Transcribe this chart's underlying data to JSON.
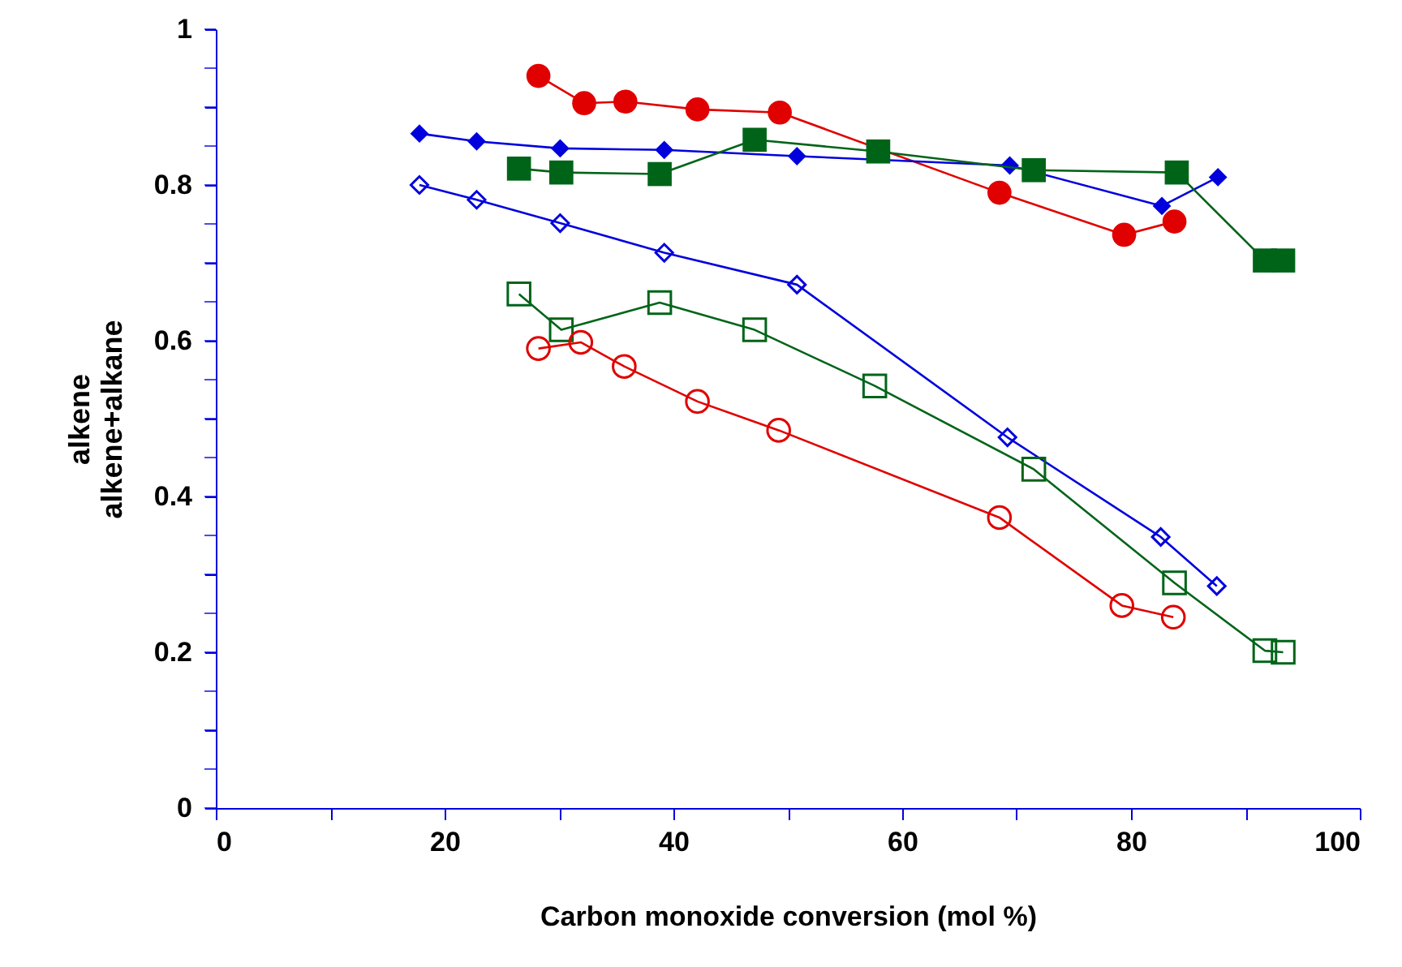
{
  "chart_data": {
    "type": "line",
    "xlabel": "Carbon monoxide conversion (mol %)",
    "ylabel": "alkene\nalkene+alkane",
    "xlim": [
      0,
      100
    ],
    "ylim": [
      0,
      1
    ],
    "xticks": [
      0,
      {
        "value": 10,
        "label": null
      },
      20,
      {
        "value": 30,
        "label": null
      },
      40,
      {
        "value": 50,
        "label": null
      },
      60,
      {
        "value": 70,
        "label": null
      },
      80,
      {
        "value": 90,
        "label": null
      },
      100
    ],
    "yticks": [
      0,
      {
        "value": 0.05,
        "label": null
      },
      {
        "value": 0.1,
        "label": null
      },
      {
        "value": 0.15,
        "label": null
      },
      0.2,
      {
        "value": 0.25,
        "label": null
      },
      {
        "value": 0.3,
        "label": null
      },
      {
        "value": 0.35,
        "label": null
      },
      0.4,
      {
        "value": 0.45,
        "label": null
      },
      {
        "value": 0.5,
        "label": null
      },
      {
        "value": 0.55,
        "label": null
      },
      0.6,
      {
        "value": 0.65,
        "label": null
      },
      {
        "value": 0.7,
        "label": null
      },
      {
        "value": 0.75,
        "label": null
      },
      0.8,
      {
        "value": 0.85,
        "label": null
      },
      {
        "value": 0.9,
        "label": null
      },
      {
        "value": 0.95,
        "label": null
      },
      1
    ],
    "grid": false,
    "series": [
      {
        "color": "#e00000",
        "marker": "circle",
        "x": [
          28.2,
          32.2,
          35.8,
          42.1,
          49.3,
          68.5,
          79.4,
          83.8
        ],
        "values": [
          0.94,
          0.905,
          0.907,
          0.897,
          0.893,
          0.79,
          0.736,
          0.753
        ]
      },
      {
        "color": "#0000dd",
        "marker": "diamond",
        "x": [
          17.8,
          22.8,
          30.1,
          39.2,
          50.8,
          69.4,
          82.7,
          87.6
        ],
        "values": [
          0.866,
          0.856,
          0.847,
          0.845,
          0.837,
          0.825,
          0.773,
          0.81
        ]
      },
      {
        "color": "#006418",
        "marker": "square",
        "x": [
          26.5,
          30.2,
          38.8,
          47.1,
          57.9,
          71.5,
          84.0,
          91.7,
          93.3
        ],
        "values": [
          0.821,
          0.816,
          0.814,
          0.858,
          0.843,
          0.819,
          0.816,
          0.703,
          0.703
        ]
      },
      {
        "color": "#0000dd",
        "marker": "diamond-open",
        "x": [
          17.8,
          22.8,
          30.1,
          39.2,
          50.8,
          69.2,
          82.6,
          87.5
        ],
        "values": [
          0.8,
          0.781,
          0.751,
          0.713,
          0.672,
          0.476,
          0.348,
          0.285
        ]
      },
      {
        "color": "#006418",
        "marker": "square-open",
        "x": [
          26.5,
          30.2,
          38.8,
          47.1,
          57.6,
          71.5,
          83.8,
          91.7,
          93.3
        ],
        "values": [
          0.66,
          0.614,
          0.649,
          0.614,
          0.542,
          0.435,
          0.289,
          0.202,
          0.2
        ]
      },
      {
        "color": "#e00000",
        "marker": "circle-open",
        "x": [
          28.2,
          31.9,
          35.7,
          42.1,
          49.2,
          68.5,
          79.2,
          83.7
        ],
        "values": [
          0.59,
          0.598,
          0.567,
          0.522,
          0.485,
          0.373,
          0.26,
          0.245
        ]
      }
    ]
  }
}
